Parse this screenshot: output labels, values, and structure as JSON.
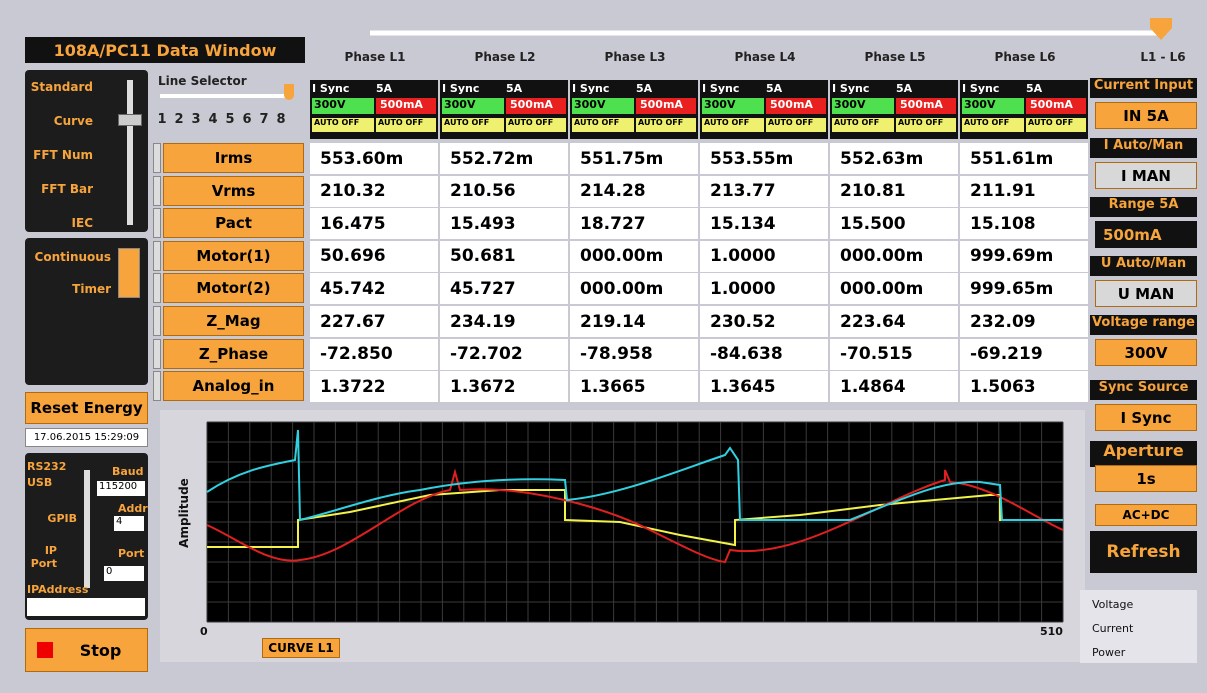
{
  "title": "108A/PC11 Data Window",
  "phase_headers": [
    "Phase L1",
    "Phase L2",
    "Phase L3",
    "Phase L4",
    "Phase L5",
    "Phase L6",
    "L1 - L6"
  ],
  "mode_selector": [
    "Standard",
    "Curve",
    "FFT Num",
    "FFT Bar",
    "IEC"
  ],
  "line_selector": {
    "label": "Line Selector",
    "ticks": [
      1,
      2,
      3,
      4,
      5,
      6,
      7,
      8
    ]
  },
  "timer_selector": [
    "Continuous",
    "Timer"
  ],
  "reset_button": "Reset Energy",
  "timestamp": "17.06.2015 15:29:09",
  "comm": {
    "options": [
      "RS232",
      "USB",
      "GPIB",
      "IP Port"
    ],
    "baud_label": "Baud",
    "baud": "115200",
    "addr_label": "Addr",
    "addr": "4",
    "port_label": "Port",
    "port": "0",
    "ip_label": "IPAddress"
  },
  "stop_button": "Stop",
  "rows": [
    "Irms",
    "Vrms",
    "Pact",
    "Motor(1)",
    "Motor(2)",
    "Z_Mag",
    "Z_Phase",
    "Analog_in"
  ],
  "channels": [
    {
      "sync": "I Sync",
      "current": "5A",
      "voltage": "300V",
      "range": "500mA",
      "auto_u": "AUTO OFF",
      "auto_i": "AUTO OFF",
      "values": [
        "553.60m",
        "210.32",
        "16.475",
        "50.696",
        "45.742",
        "227.67",
        "-72.850",
        "1.3722"
      ]
    },
    {
      "sync": "I Sync",
      "current": "5A",
      "voltage": "300V",
      "range": "500mA",
      "auto_u": "AUTO OFF",
      "auto_i": "AUTO OFF",
      "values": [
        "552.72m",
        "210.56",
        "15.493",
        "50.681",
        "45.727",
        "234.19",
        "-72.702",
        "1.3672"
      ]
    },
    {
      "sync": "I Sync",
      "current": "5A",
      "voltage": "300V",
      "range": "500mA",
      "auto_u": "AUTO OFF",
      "auto_i": "AUTO OFF",
      "values": [
        "551.75m",
        "214.28",
        "18.727",
        "000.00m",
        "000.00m",
        "219.14",
        "-78.958",
        "1.3665"
      ]
    },
    {
      "sync": "I Sync",
      "current": "5A",
      "voltage": "300V",
      "range": "500mA",
      "auto_u": "AUTO OFF",
      "auto_i": "AUTO OFF",
      "values": [
        "553.55m",
        "213.77",
        "15.134",
        "1.0000",
        "1.0000",
        "230.52",
        "-84.638",
        "1.3645"
      ]
    },
    {
      "sync": "I Sync",
      "current": "5A",
      "voltage": "300V",
      "range": "500mA",
      "auto_u": "AUTO OFF",
      "auto_i": "AUTO OFF",
      "values": [
        "552.63m",
        "210.81",
        "15.500",
        "000.00m",
        "000.00m",
        "223.64",
        "-70.515",
        "1.4864"
      ]
    },
    {
      "sync": "I Sync",
      "current": "5A",
      "voltage": "300V",
      "range": "500mA",
      "auto_u": "AUTO OFF",
      "auto_i": "AUTO OFF",
      "values": [
        "551.61m",
        "211.91",
        "15.108",
        "999.69m",
        "999.65m",
        "232.09",
        "-69.219",
        "1.5063"
      ]
    }
  ],
  "right_panel": [
    {
      "label": "Current Input",
      "value": "IN 5A"
    },
    {
      "label": "I Auto/Man",
      "value": "I MAN"
    },
    {
      "label": "Range 5A",
      "value": "500mA"
    },
    {
      "label": "U Auto/Man",
      "value": "U MAN"
    },
    {
      "label": "Voltage range",
      "value": "300V"
    },
    {
      "label": "Sync Source",
      "value": "I Sync"
    },
    {
      "label": "Aperture",
      "value": "1s"
    }
  ],
  "coupling": "AC+DC",
  "refresh_button": "Refresh",
  "graph": {
    "y_label": "Amplitude",
    "x_start": 0,
    "x_end": 510,
    "curve": "CURVE L1",
    "legend": [
      "Voltage",
      "Current",
      "Power"
    ]
  }
}
